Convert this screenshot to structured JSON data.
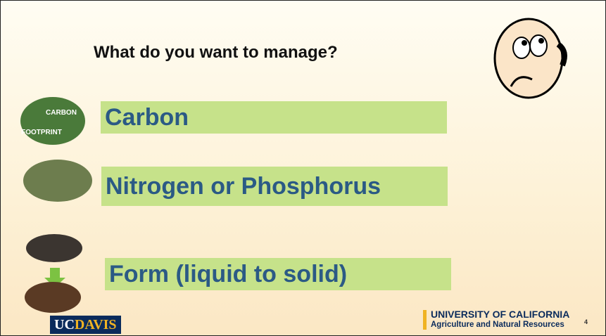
{
  "slide": {
    "title": "What do you want to manage?",
    "items": [
      "Carbon",
      "Nitrogen or Phosphorus",
      "Form (liquid to solid)"
    ],
    "footprint_text": [
      "CARBON",
      "FOOTPRINT"
    ],
    "logo_left": {
      "part1": "UC",
      "part2": "DAVIS"
    },
    "logo_right": {
      "line1": "UNIVERSITY OF CALIFORNIA",
      "line2": "Agriculture and Natural Resources"
    },
    "page_number": "4"
  }
}
